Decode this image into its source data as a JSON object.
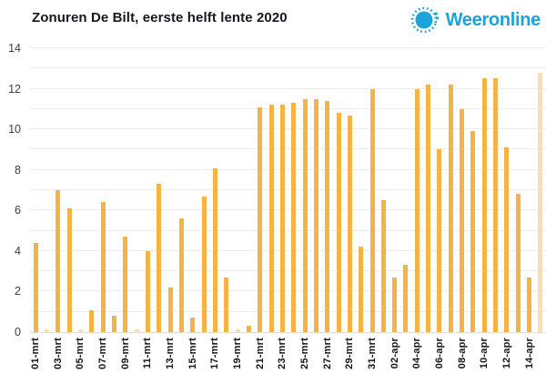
{
  "header": {
    "title": "Zonuren De Bilt, eerste helft lente 2020",
    "brand": "Weeronline"
  },
  "colors": {
    "bar": "#F4B344",
    "bar_muted_last": "#F8DFAC",
    "bar_zero_stub": "#F9E0B2",
    "brand_blue": "#1CA3DC",
    "gridline": "#EDEDED",
    "title_text": "#17171F",
    "axis_text": "#3D3D3D"
  },
  "chart_data": {
    "type": "bar",
    "title": "Zonuren De Bilt, eerste helft lente 2020",
    "xlabel": "",
    "ylabel": "",
    "ylim": [
      0,
      14
    ],
    "yticks": [
      0,
      2,
      4,
      6,
      8,
      10,
      12,
      14
    ],
    "grid": "horizontal gridline at every 1 unit",
    "x_tick_labeling": "every second day labeled, labels rotated 90deg",
    "legend": "none",
    "muted_last_bar": true,
    "categories": [
      "01-mrt",
      "02-mrt",
      "03-mrt",
      "04-mrt",
      "05-mrt",
      "06-mrt",
      "07-mrt",
      "08-mrt",
      "09-mrt",
      "10-mrt",
      "11-mrt",
      "12-mrt",
      "13-mrt",
      "14-mrt",
      "15-mrt",
      "16-mrt",
      "17-mrt",
      "18-mrt",
      "19-mrt",
      "20-mrt",
      "21-mrt",
      "22-mrt",
      "23-mrt",
      "24-mrt",
      "25-mrt",
      "26-mrt",
      "27-mrt",
      "28-mrt",
      "29-mrt",
      "30-mrt",
      "31-mrt",
      "01-apr",
      "02-apr",
      "03-apr",
      "04-apr",
      "05-apr",
      "06-apr",
      "07-apr",
      "08-apr",
      "09-apr",
      "10-apr",
      "11-apr",
      "12-apr",
      "13-apr",
      "14-apr",
      "15-apr"
    ],
    "values": [
      4.4,
      0,
      7.0,
      6.1,
      0,
      1.1,
      6.4,
      0.8,
      4.7,
      0,
      4.0,
      7.3,
      2.2,
      5.6,
      0.7,
      6.7,
      8.1,
      2.7,
      0,
      0.3,
      11.1,
      11.2,
      11.2,
      11.3,
      11.5,
      11.5,
      11.4,
      10.8,
      10.7,
      4.2,
      12.0,
      6.5,
      2.7,
      3.3,
      12.0,
      12.2,
      9.0,
      12.2,
      11.0,
      9.9,
      12.5,
      12.5,
      9.1,
      6.8,
      2.7,
      12.8
    ]
  }
}
